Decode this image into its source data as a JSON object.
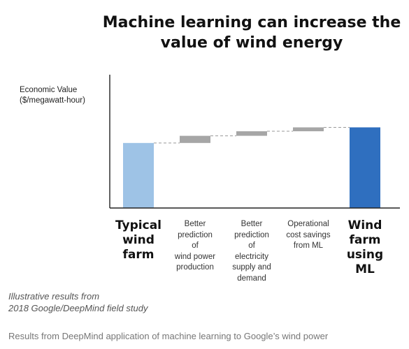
{
  "chart_data": {
    "type": "bar",
    "subtype": "waterfall",
    "title_lines": [
      "Machine learning can increase the",
      "value of wind energy"
    ],
    "ylabel_lines": [
      "Economic Value",
      "($/megawatt-hour)"
    ],
    "xlabel": "",
    "categories": [
      {
        "label_lines": [
          "Typical",
          "wind",
          "farm"
        ],
        "emphasis": true
      },
      {
        "label_lines": [
          "Better",
          "prediction",
          "of",
          "wind power",
          "production"
        ],
        "emphasis": false
      },
      {
        "label_lines": [
          "Better",
          "prediction",
          "of",
          "electricity",
          "supply and",
          "demand"
        ],
        "emphasis": false
      },
      {
        "label_lines": [
          "Operational",
          "cost savings",
          "from ML"
        ],
        "emphasis": false
      },
      {
        "label_lines": [
          "Wind",
          "farm",
          "using",
          "ML"
        ],
        "emphasis": true
      }
    ],
    "bars": [
      {
        "kind": "total",
        "start": 0,
        "end": 100,
        "color": "#9ec3e6"
      },
      {
        "kind": "increment",
        "start": 100,
        "end": 111,
        "color": "#a6a6a6"
      },
      {
        "kind": "increment",
        "start": 111,
        "end": 118,
        "color": "#a6a6a6"
      },
      {
        "kind": "increment",
        "start": 118,
        "end": 124,
        "color": "#a6a6a6"
      },
      {
        "kind": "total",
        "start": 0,
        "end": 124,
        "color": "#2f6fbf"
      }
    ],
    "ylim": [
      0,
      205
    ],
    "grid": false,
    "connector": "dashed",
    "annotation_lines": [
      "Illustrative results from",
      "2018 Google/DeepMind field study"
    ]
  },
  "caption": "Results from DeepMind application of machine learning to Google’s wind power"
}
